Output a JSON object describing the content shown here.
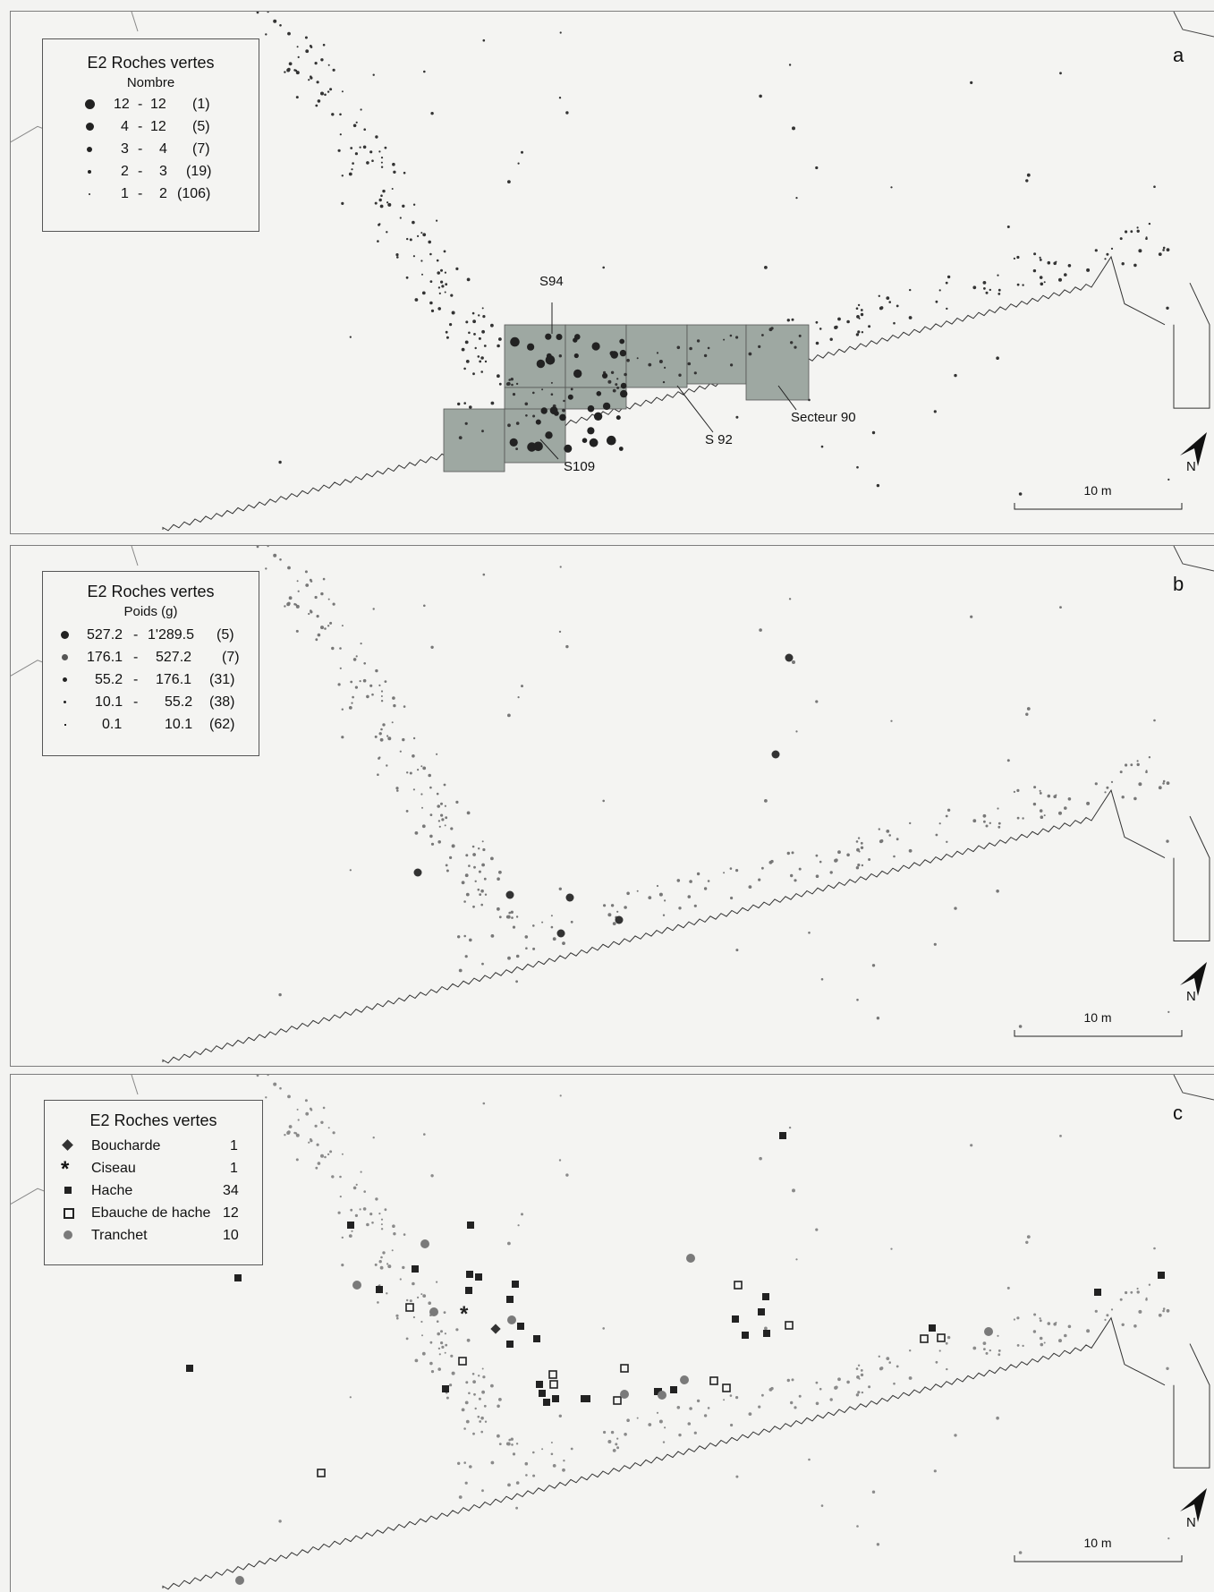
{
  "panels": [
    {
      "letter": "a",
      "legend": {
        "title": "E2 Roches vertes",
        "subtitle": "Nombre",
        "rows": [
          {
            "from": "12",
            "sep": "-",
            "to": "12",
            "count": "(1)"
          },
          {
            "from": "4",
            "sep": "-",
            "to": "12",
            "count": "(5)"
          },
          {
            "from": "3",
            "sep": "-",
            "to": "4",
            "count": "(7)"
          },
          {
            "from": "2",
            "sep": "-",
            "to": "3",
            "count": "(19)"
          },
          {
            "from": "1",
            "sep": "-",
            "to": "2",
            "count": "(106)"
          }
        ]
      },
      "labels": {
        "s94": "S94",
        "s92": "S 92",
        "s109": "S109",
        "secteur90": "Secteur 90"
      },
      "scale": "10 m",
      "north": "N"
    },
    {
      "letter": "b",
      "legend": {
        "title": "E2 Roches vertes",
        "subtitle": "Poids (g)",
        "rows": [
          {
            "from": "527.2",
            "sep": "-",
            "to": "1'289.5",
            "count": "(5)"
          },
          {
            "from": "176.1",
            "sep": "-",
            "to": "527.2",
            "count": "(7)"
          },
          {
            "from": "55.2",
            "sep": "-",
            "to": "176.1",
            "count": "(31)"
          },
          {
            "from": "10.1",
            "sep": "-",
            "to": "55.2",
            "count": "(38)"
          },
          {
            "from": "0.1",
            "sep": "-",
            "to": "10.1",
            "count": "(62)"
          }
        ]
      },
      "scale": "10 m",
      "north": "N"
    },
    {
      "letter": "c",
      "legend": {
        "title": "E2 Roches vertes",
        "rows": [
          {
            "label": "Boucharde",
            "count": "1",
            "symbol": "diamond"
          },
          {
            "label": "Ciseau",
            "count": "1",
            "symbol": "asterisk"
          },
          {
            "label": "Hache",
            "count": "34",
            "symbol": "square"
          },
          {
            "label": "Ebauche de hache",
            "count": "12",
            "symbol": "open-square"
          },
          {
            "label": "Tranchet",
            "count": "10",
            "symbol": "grey-circle"
          }
        ]
      },
      "scale": "10 m",
      "north": "N"
    }
  ],
  "colors": {
    "background": "#f4f4f2",
    "sector_fill": "#9ea8a2",
    "dots": "#222222",
    "grey_dots": "#8a8a8a"
  }
}
